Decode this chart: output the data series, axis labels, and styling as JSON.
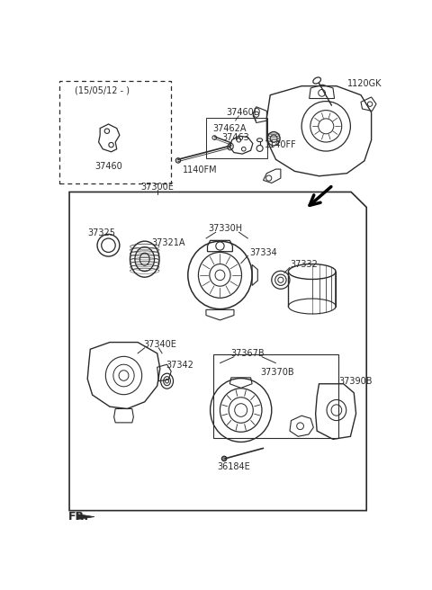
{
  "bg_color": "#ffffff",
  "line_color": "#2a2a2a",
  "labels": {
    "top_date": "(15/05/12 - )",
    "p37460": "37460",
    "p37460D": "37460D",
    "p37462A": "37462A",
    "p37463": "37463",
    "p1140FF": "1140FF",
    "p1140FM": "1140FM",
    "p1120GK": "1120GK",
    "p37300E": "37300E",
    "p37325": "37325",
    "p37321A": "37321A",
    "p37330H": "37330H",
    "p37334": "37334",
    "p37332": "37332",
    "p37340E": "37340E",
    "p37342": "37342",
    "p37367B": "37367B",
    "p37370B": "37370B",
    "p37390B": "37390B",
    "p36184E": "36184E",
    "fr_label": "FR."
  },
  "font_size": 7.0
}
